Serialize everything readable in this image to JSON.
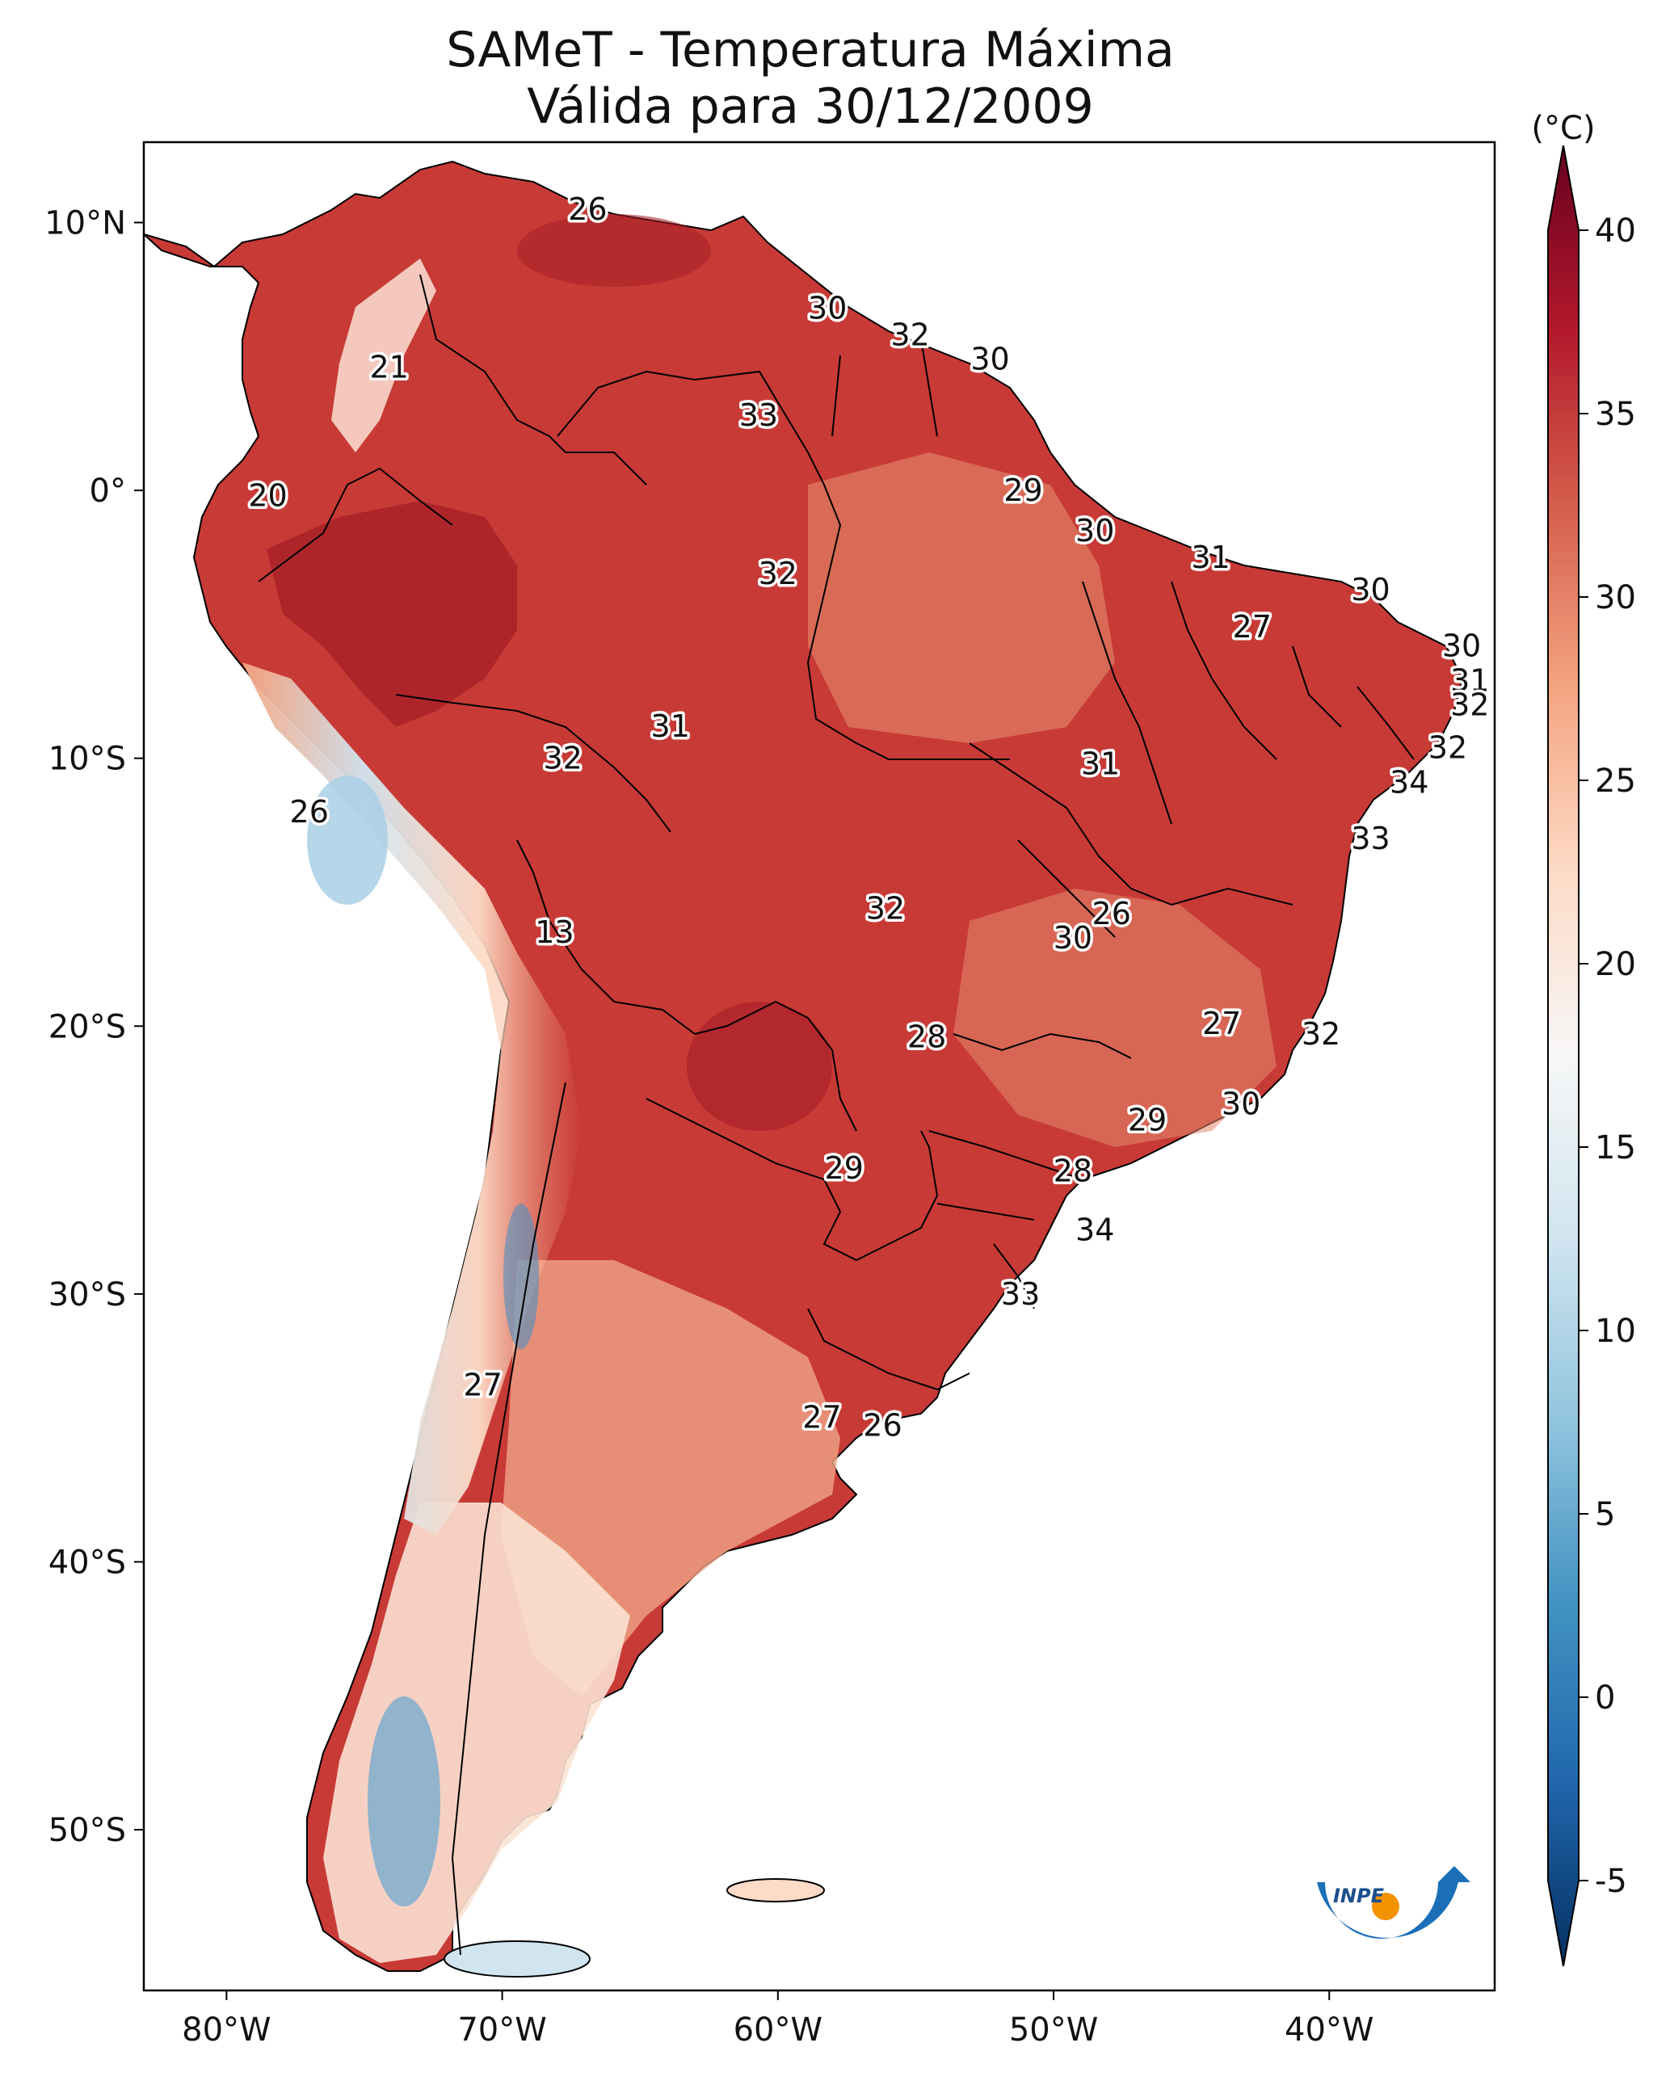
{
  "title": {
    "line1": "SAMeT - Temperatura Máxima",
    "line2": "Válida para 30/12/2009"
  },
  "colorbar": {
    "unit": "(°C)",
    "ticks": [
      {
        "label": "40",
        "value": 40
      },
      {
        "label": "35",
        "value": 35
      },
      {
        "label": "30",
        "value": 30
      },
      {
        "label": "25",
        "value": 25
      },
      {
        "label": "20",
        "value": 20
      },
      {
        "label": "15",
        "value": 15
      },
      {
        "label": "10",
        "value": 10
      },
      {
        "label": "5",
        "value": 5
      },
      {
        "label": "0",
        "value": 0
      },
      {
        "label": "-5",
        "value": -5
      }
    ],
    "range": [
      -5,
      40
    ],
    "colors": [
      "#053061",
      "#2166ac",
      "#4393c3",
      "#92c5de",
      "#d1e5f0",
      "#f7f7f7",
      "#fddbc7",
      "#f4a582",
      "#d6604d",
      "#b2182b",
      "#67001f"
    ]
  },
  "axes": {
    "lat_ticks": [
      {
        "label": "10°N",
        "lat": 10
      },
      {
        "label": "0°",
        "lat": 0
      },
      {
        "label": "10°S",
        "lat": -10
      },
      {
        "label": "20°S",
        "lat": -20
      },
      {
        "label": "30°S",
        "lat": -30
      },
      {
        "label": "40°S",
        "lat": -40
      },
      {
        "label": "50°S",
        "lat": -50
      }
    ],
    "lon_ticks": [
      {
        "label": "80°W",
        "lon": -80
      },
      {
        "label": "70°W",
        "lon": -70
      },
      {
        "label": "60°W",
        "lon": -60
      },
      {
        "label": "50°W",
        "lon": -50
      },
      {
        "label": "40°W",
        "lon": -40
      }
    ],
    "lon_range": [
      -83,
      -34
    ],
    "lat_range": [
      -56,
      13
    ]
  },
  "capitals": [
    {
      "label": "26",
      "lon": -66.9,
      "lat": 10.5
    },
    {
      "label": "30",
      "lon": -58.2,
      "lat": 6.8
    },
    {
      "label": "32",
      "lon": -55.2,
      "lat": 5.8
    },
    {
      "label": "30",
      "lon": -52.3,
      "lat": 4.9
    },
    {
      "label": "21",
      "lon": -74.1,
      "lat": 4.6
    },
    {
      "label": "33",
      "lon": -60.7,
      "lat": 2.8
    },
    {
      "label": "20",
      "lon": -78.5,
      "lat": -0.2
    },
    {
      "label": "29",
      "lon": -51.1,
      "lat": 0.0
    },
    {
      "label": "30",
      "lon": -48.5,
      "lat": -1.5
    },
    {
      "label": "31",
      "lon": -44.3,
      "lat": -2.5
    },
    {
      "label": "30",
      "lon": -38.5,
      "lat": -3.7
    },
    {
      "label": "32",
      "lon": -60.0,
      "lat": -3.1
    },
    {
      "label": "27",
      "lon": -42.8,
      "lat": -5.1
    },
    {
      "label": "30",
      "lon": -35.2,
      "lat": -5.8
    },
    {
      "label": "31",
      "lon": -34.9,
      "lat": -7.1
    },
    {
      "label": "32",
      "lon": -34.9,
      "lat": -8.0
    },
    {
      "label": "31",
      "lon": -63.9,
      "lat": -8.8
    },
    {
      "label": "32",
      "lon": -67.8,
      "lat": -10.0
    },
    {
      "label": "32",
      "lon": -35.7,
      "lat": -9.6
    },
    {
      "label": "31",
      "lon": -48.3,
      "lat": -10.2
    },
    {
      "label": "34",
      "lon": -37.1,
      "lat": -10.9
    },
    {
      "label": "26",
      "lon": -77.0,
      "lat": -12.0
    },
    {
      "label": "33",
      "lon": -38.5,
      "lat": -13.0
    },
    {
      "label": "32",
      "lon": -56.1,
      "lat": -15.6
    },
    {
      "label": "26",
      "lon": -47.9,
      "lat": -15.8
    },
    {
      "label": "30",
      "lon": -49.3,
      "lat": -16.7
    },
    {
      "label": "13",
      "lon": -68.1,
      "lat": -16.5
    },
    {
      "label": "27",
      "lon": -43.9,
      "lat": -19.9
    },
    {
      "label": "32",
      "lon": -40.3,
      "lat": -20.3
    },
    {
      "label": "28",
      "lon": -54.6,
      "lat": -20.4
    },
    {
      "label": "30",
      "lon": -43.2,
      "lat": -22.9
    },
    {
      "label": "29",
      "lon": -46.6,
      "lat": -23.5
    },
    {
      "label": "29",
      "lon": -57.6,
      "lat": -25.3
    },
    {
      "label": "28",
      "lon": -49.3,
      "lat": -25.4
    },
    {
      "label": "34",
      "lon": -48.5,
      "lat": -27.6
    },
    {
      "label": "33",
      "lon": -51.2,
      "lat": -30.0
    },
    {
      "label": "27",
      "lon": -70.7,
      "lat": -33.4
    },
    {
      "label": "27",
      "lon": -58.4,
      "lat": -34.6
    },
    {
      "label": "26",
      "lon": -56.2,
      "lat": -34.9
    }
  ],
  "logo": {
    "text": "INPE"
  }
}
